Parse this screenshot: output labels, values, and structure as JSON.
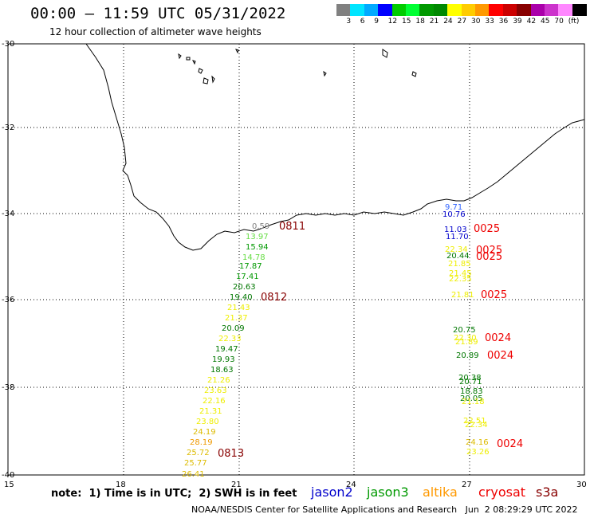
{
  "header": {
    "title": "00:00 – 11:59 UTC 05/31/2022",
    "subtitle": "12 hour collection of altimeter wave heights"
  },
  "legend": {
    "colors": [
      "#808080",
      "#00e5ff",
      "#00aaff",
      "#0000ff",
      "#00cc00",
      "#00ff33",
      "#009900",
      "#008800",
      "#ffff00",
      "#ffcc00",
      "#ff9900",
      "#ff0000",
      "#cc0000",
      "#880000",
      "#aa00aa",
      "#cc33cc",
      "#ff88ff",
      "#000000"
    ],
    "ticks": [
      "3",
      "6",
      "9",
      "12",
      "15",
      "18",
      "21",
      "24",
      "27",
      "30",
      "33",
      "36",
      "39",
      "42",
      "45",
      "70",
      "(ft)"
    ]
  },
  "axes": {
    "lon_ticks": [
      "15",
      "18",
      "21",
      "24",
      "27",
      "30"
    ],
    "lat_ticks": [
      "-30",
      "-32",
      "-34",
      "-36",
      "-38",
      "-40"
    ]
  },
  "track1": [
    {
      "v": "0.59",
      "c": "#808080"
    },
    {
      "v": "13.97",
      "c": "#66dd44"
    },
    {
      "v": "15.94",
      "c": "#009900"
    },
    {
      "v": "14.78",
      "c": "#66dd44"
    },
    {
      "v": "17.87",
      "c": "#009900"
    },
    {
      "v": "17.41",
      "c": "#009900"
    },
    {
      "v": "20.63",
      "c": "#007700"
    },
    {
      "v": "19.40",
      "c": "#007700"
    },
    {
      "v": "21.43",
      "c": "#eeee00"
    },
    {
      "v": "21.37",
      "c": "#eeee00"
    },
    {
      "v": "20.09",
      "c": "#007700"
    },
    {
      "v": "22.33",
      "c": "#eeee00"
    },
    {
      "v": "19.47",
      "c": "#007700"
    },
    {
      "v": "19.93",
      "c": "#007700"
    },
    {
      "v": "18.63",
      "c": "#007700"
    },
    {
      "v": "21.26",
      "c": "#eeee00"
    },
    {
      "v": "23.63",
      "c": "#eeee00"
    },
    {
      "v": "22.16",
      "c": "#eeee00"
    },
    {
      "v": "21.31",
      "c": "#eeee00"
    },
    {
      "v": "23.80",
      "c": "#eeee00"
    },
    {
      "v": "24.19",
      "c": "#ddbb00"
    },
    {
      "v": "28.19",
      "c": "#ee9900"
    },
    {
      "v": "25.72",
      "c": "#ddbb00"
    },
    {
      "v": "25.77",
      "c": "#ddbb00"
    },
    {
      "v": "26.41",
      "c": "#ddbb00"
    }
  ],
  "track2": [
    {
      "v": "9.71",
      "c": "#3366ff"
    },
    {
      "v": "10.76",
      "c": "#0000cc"
    },
    {
      "v": "11.03",
      "c": "#0000cc"
    },
    {
      "v": "11.70",
      "c": "#0000cc"
    },
    {
      "v": "22.34",
      "c": "#eeee00"
    },
    {
      "v": "20.44",
      "c": "#007700"
    },
    {
      "v": "21.85",
      "c": "#eeee00"
    },
    {
      "v": "21.45",
      "c": "#eeee00"
    },
    {
      "v": "22.35",
      "c": "#eeee00"
    },
    {
      "v": "21.81",
      "c": "#eeee00"
    },
    {
      "v": "20.75",
      "c": "#007700"
    },
    {
      "v": "22.30",
      "c": "#eeee00"
    },
    {
      "v": "21.89",
      "c": "#eeee00"
    },
    {
      "v": "20.89",
      "c": "#007700"
    },
    {
      "v": "20.38",
      "c": "#007700"
    },
    {
      "v": "20.71",
      "c": "#007700"
    },
    {
      "v": "18.83",
      "c": "#007700"
    },
    {
      "v": "20.05",
      "c": "#007700"
    },
    {
      "v": "21.18",
      "c": "#eeee00"
    },
    {
      "v": "22.51",
      "c": "#eeee00"
    },
    {
      "v": "22.34",
      "c": "#eeee00"
    },
    {
      "v": "24.16",
      "c": "#ddbb00"
    },
    {
      "v": "23.26",
      "c": "#eeee00"
    }
  ],
  "cycles_dark": [
    "0811",
    "0812",
    "0813"
  ],
  "cycles_red": [
    "0025",
    "0025",
    "0025",
    "0025",
    "0024",
    "0024",
    "0024"
  ],
  "footer": {
    "note": "note:  1) Time is in UTC;  2) SWH is in feet",
    "satellites": [
      {
        "name": "jason2",
        "color": "#0000cc"
      },
      {
        "name": "jason3",
        "color": "#009900"
      },
      {
        "name": "altika",
        "color": "#ff9900"
      },
      {
        "name": "cryosat",
        "color": "#ee0000"
      },
      {
        "name": "s3a",
        "color": "#880000"
      }
    ],
    "credit": "NOAA/NESDIS Center for Satellite Applications and Research   Jun  2 08:29:29 UTC 2022"
  }
}
